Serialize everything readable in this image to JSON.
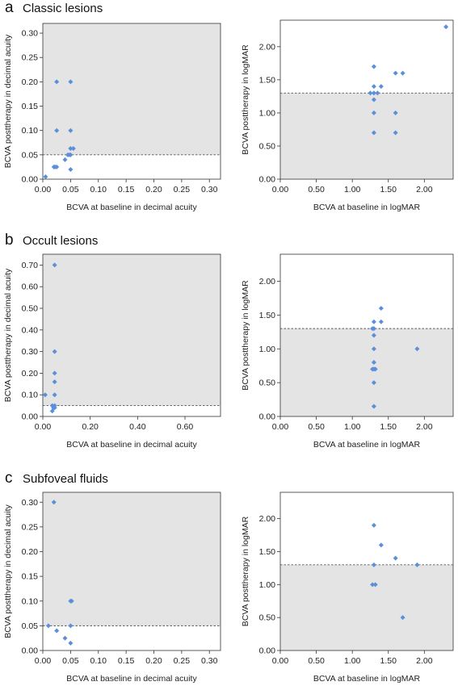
{
  "sections": [
    {
      "letter": "a",
      "title": "Classic lesions"
    },
    {
      "letter": "b",
      "title": "Occult lesions"
    },
    {
      "letter": "c",
      "title": "Subfoveal fluids"
    }
  ],
  "colors": {
    "point": "#5b8fd9",
    "shade": "#e4e4e4",
    "axis": "#333333",
    "threshold": "#555555"
  },
  "chart_data": [
    {
      "type": "scatter",
      "section": 0,
      "xlabel": "BCVA at baseline in decimal acuity",
      "ylabel": "BCVA posttherapy in decimal acuity",
      "xlim": [
        0,
        0.32
      ],
      "ylim": [
        0,
        0.32
      ],
      "xticks": [
        "0.00",
        "0.05",
        "0.10",
        "0.15",
        "0.20",
        "0.25",
        "0.30"
      ],
      "yticks": [
        "0.00",
        "0.05",
        "0.10",
        "0.15",
        "0.20",
        "0.25",
        "0.30"
      ],
      "xtick_values": [
        0,
        0.05,
        0.1,
        0.15,
        0.2,
        0.25,
        0.3
      ],
      "ytick_values": [
        0,
        0.05,
        0.1,
        0.15,
        0.2,
        0.25,
        0.3
      ],
      "threshold": 0.05,
      "shade": "above",
      "points": [
        [
          0.005,
          0.005
        ],
        [
          0.02,
          0.025
        ],
        [
          0.025,
          0.025
        ],
        [
          0.022,
          0.025
        ],
        [
          0.025,
          0.1
        ],
        [
          0.025,
          0.2
        ],
        [
          0.04,
          0.04
        ],
        [
          0.045,
          0.05
        ],
        [
          0.05,
          0.05
        ],
        [
          0.05,
          0.063
        ],
        [
          0.05,
          0.1
        ],
        [
          0.05,
          0.2
        ],
        [
          0.055,
          0.063
        ],
        [
          0.048,
          0.05
        ],
        [
          0.05,
          0.02
        ]
      ]
    },
    {
      "type": "scatter",
      "section": 0,
      "xlabel": "BCVA at baseline in logMAR",
      "ylabel": "BCVA posttherapy in logMAR",
      "xlim": [
        0,
        2.4
      ],
      "ylim": [
        0,
        2.4
      ],
      "xticks": [
        "0.00",
        "0.50",
        "1.00",
        "1.50",
        "2.00"
      ],
      "yticks": [
        "0.00",
        "0.50",
        "1.00",
        "1.50",
        "2.00"
      ],
      "xtick_values": [
        0,
        0.5,
        1,
        1.5,
        2
      ],
      "ytick_values": [
        0,
        0.5,
        1,
        1.5,
        2
      ],
      "threshold": 1.3,
      "shade": "below",
      "points": [
        [
          1.25,
          1.3
        ],
        [
          1.3,
          1.2
        ],
        [
          1.3,
          1.3
        ],
        [
          1.3,
          1.4
        ],
        [
          1.3,
          1.7
        ],
        [
          1.3,
          1.0
        ],
        [
          1.3,
          0.7
        ],
        [
          1.35,
          1.3
        ],
        [
          1.4,
          1.4
        ],
        [
          1.6,
          1.6
        ],
        [
          1.7,
          1.6
        ],
        [
          1.6,
          1.0
        ],
        [
          1.6,
          0.7
        ],
        [
          2.3,
          2.3
        ]
      ]
    },
    {
      "type": "scatter",
      "section": 1,
      "xlabel": "BCVA at baseline in decimal acuity",
      "ylabel": "BCVA posttherapy in decimal acuity",
      "xlim": [
        0,
        0.75
      ],
      "ylim": [
        0,
        0.75
      ],
      "xticks": [
        "0.00",
        "0.20",
        "0.40",
        "0.60"
      ],
      "yticks": [
        "0.00",
        "0.10",
        "0.20",
        "0.30",
        "0.40",
        "0.50",
        "0.60",
        "0.70"
      ],
      "xtick_values": [
        0,
        0.2,
        0.4,
        0.6
      ],
      "ytick_values": [
        0,
        0.1,
        0.2,
        0.3,
        0.4,
        0.5,
        0.6,
        0.7
      ],
      "threshold": 0.05,
      "shade": "above",
      "points": [
        [
          0.01,
          0.1
        ],
        [
          0.04,
          0.025
        ],
        [
          0.045,
          0.04
        ],
        [
          0.05,
          0.05
        ],
        [
          0.05,
          0.1
        ],
        [
          0.05,
          0.16
        ],
        [
          0.05,
          0.2
        ],
        [
          0.05,
          0.3
        ],
        [
          0.05,
          0.7
        ],
        [
          0.04,
          0.05
        ],
        [
          0.05,
          0.04
        ]
      ]
    },
    {
      "type": "scatter",
      "section": 1,
      "xlabel": "BCVA at baseline in logMAR",
      "ylabel": "BCVA posttherapy in logMAR",
      "xlim": [
        0,
        2.4
      ],
      "ylim": [
        0,
        2.4
      ],
      "xticks": [
        "0.00",
        "0.50",
        "1.00",
        "1.50",
        "2.00"
      ],
      "yticks": [
        "0.00",
        "0.50",
        "1.00",
        "1.50",
        "2.00"
      ],
      "xtick_values": [
        0,
        0.5,
        1,
        1.5,
        2
      ],
      "ytick_values": [
        0,
        0.5,
        1,
        1.5,
        2
      ],
      "threshold": 1.3,
      "shade": "below",
      "points": [
        [
          1.3,
          1.4
        ],
        [
          1.3,
          1.3
        ],
        [
          1.28,
          1.3
        ],
        [
          1.3,
          1.0
        ],
        [
          1.3,
          0.8
        ],
        [
          1.3,
          0.7
        ],
        [
          1.28,
          0.7
        ],
        [
          1.32,
          0.7
        ],
        [
          1.3,
          0.5
        ],
        [
          1.3,
          0.15
        ],
        [
          1.3,
          1.2
        ],
        [
          1.4,
          1.4
        ],
        [
          1.4,
          1.6
        ],
        [
          1.9,
          1.0
        ]
      ]
    },
    {
      "type": "scatter",
      "section": 2,
      "xlabel": "BCVA at baseline in decimal acuity",
      "ylabel": "BCVA posttherapy in decimal acuity",
      "xlim": [
        0,
        0.32
      ],
      "ylim": [
        0,
        0.32
      ],
      "xticks": [
        "0.00",
        "0.05",
        "0.10",
        "0.15",
        "0.20",
        "0.25",
        "0.30"
      ],
      "yticks": [
        "0.00",
        "0.05",
        "0.10",
        "0.15",
        "0.20",
        "0.25",
        "0.30"
      ],
      "xtick_values": [
        0,
        0.05,
        0.1,
        0.15,
        0.2,
        0.25,
        0.3
      ],
      "ytick_values": [
        0,
        0.05,
        0.1,
        0.15,
        0.2,
        0.25,
        0.3
      ],
      "threshold": 0.05,
      "shade": "above",
      "points": [
        [
          0.01,
          0.05
        ],
        [
          0.02,
          0.3
        ],
        [
          0.025,
          0.04
        ],
        [
          0.04,
          0.025
        ],
        [
          0.05,
          0.1
        ],
        [
          0.052,
          0.1
        ],
        [
          0.05,
          0.05
        ],
        [
          0.05,
          0.015
        ]
      ]
    },
    {
      "type": "scatter",
      "section": 2,
      "xlabel": "BCVA at baseline in logMAR",
      "ylabel": "BCVA posttherapy in logMAR",
      "xlim": [
        0,
        2.4
      ],
      "ylim": [
        0,
        2.4
      ],
      "xticks": [
        "0.00",
        "0.50",
        "1.00",
        "1.50",
        "2.00"
      ],
      "yticks": [
        "0.00",
        "0.50",
        "1.00",
        "1.50",
        "2.00"
      ],
      "xtick_values": [
        0,
        0.5,
        1,
        1.5,
        2
      ],
      "ytick_values": [
        0,
        0.5,
        1,
        1.5,
        2
      ],
      "threshold": 1.3,
      "shade": "below",
      "points": [
        [
          1.3,
          1.9
        ],
        [
          1.3,
          1.3
        ],
        [
          1.28,
          1.0
        ],
        [
          1.32,
          1.0
        ],
        [
          1.4,
          1.6
        ],
        [
          1.6,
          1.4
        ],
        [
          1.9,
          1.3
        ],
        [
          1.7,
          0.5
        ]
      ]
    }
  ]
}
